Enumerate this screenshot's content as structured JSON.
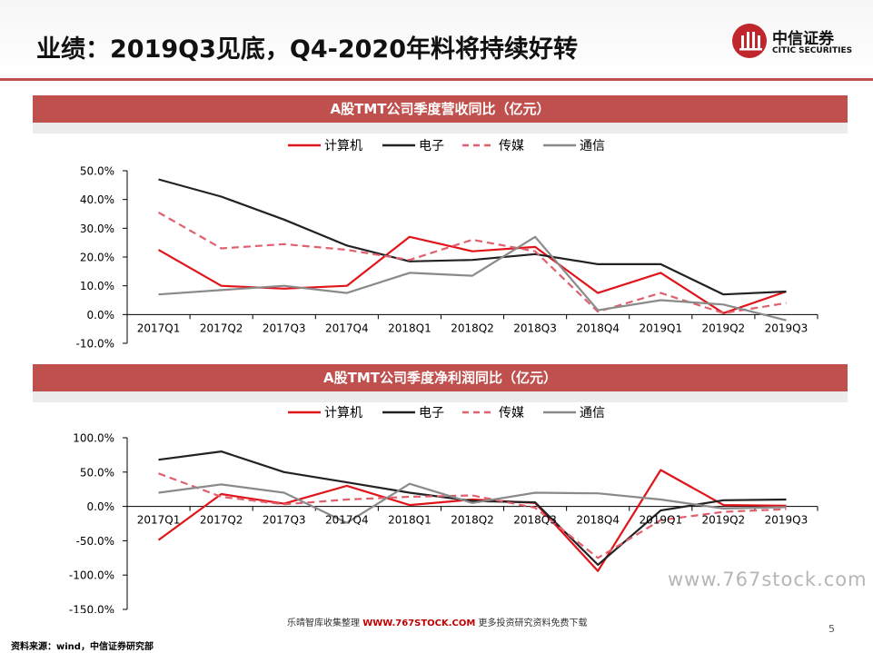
{
  "title": "业绩：2019Q3见底，Q4-2020年料将持续好转",
  "logo": {
    "cn": "中信证券",
    "en": "CITIC SECURITIES",
    "icon": "citic-logo-icon",
    "color": "#c0272d"
  },
  "accent": "#c0504d",
  "footer": {
    "note_prefix": "乐晴智库收集整理 ",
    "brand": "WWW.767STOCK.COM",
    "note_suffix": " 更多投资研究资料免费下载",
    "source": "资料来源：wind，中信证券研究部",
    "page": "5",
    "watermark": "www.767stock.com"
  },
  "chart_data": [
    {
      "type": "line",
      "title": "A股TMT公司季度营收同比（亿元）",
      "categories": [
        "2017Q1",
        "2017Q2",
        "2017Q3",
        "2017Q4",
        "2018Q1",
        "2018Q2",
        "2018Q3",
        "2018Q4",
        "2019Q1",
        "2019Q2",
        "2019Q3"
      ],
      "ylim": [
        -10,
        50
      ],
      "yticks": [
        -10,
        0,
        10,
        20,
        30,
        40,
        50
      ],
      "ytick_labels": [
        "-10.0%",
        "0.0%",
        "10.0%",
        "20.0%",
        "30.0%",
        "40.0%",
        "50.0%"
      ],
      "legend_position": "top-center",
      "grid": false,
      "series": [
        {
          "name": "计算机",
          "color": "#e0151b",
          "dash": "solid",
          "values": [
            22.5,
            10,
            9,
            10,
            27,
            22,
            23.5,
            7.5,
            14.5,
            0.5,
            8
          ]
        },
        {
          "name": "电子",
          "color": "#222222",
          "dash": "solid",
          "values": [
            47,
            41,
            33,
            24,
            18.5,
            19,
            21,
            17.5,
            17.5,
            7,
            8
          ]
        },
        {
          "name": "传媒",
          "color": "#e0606e",
          "dash": "dashed",
          "values": [
            35.5,
            23,
            24.5,
            22.5,
            19,
            26,
            22,
            1,
            7.5,
            0.5,
            4
          ]
        },
        {
          "name": "通信",
          "color": "#8a8a8a",
          "dash": "solid",
          "values": [
            7,
            8.5,
            10,
            7.5,
            14.5,
            13.5,
            27,
            1.5,
            5,
            3.5,
            -2
          ]
        }
      ]
    },
    {
      "type": "line",
      "title": "A股TMT公司季度净利润同比（亿元）",
      "categories": [
        "2017Q1",
        "2017Q2",
        "2017Q3",
        "2017Q4",
        "2018Q1",
        "2018Q2",
        "2018Q3",
        "2018Q4",
        "2019Q1",
        "2019Q2",
        "2019Q3"
      ],
      "ylim": [
        -150,
        100
      ],
      "yticks": [
        -150,
        -100,
        -50,
        0,
        50,
        100
      ],
      "ytick_labels": [
        "-150.0%",
        "-100.0%",
        "-50.0%",
        "0.0%",
        "50.0%",
        "100.0%"
      ],
      "legend_position": "top-center",
      "grid": false,
      "series": [
        {
          "name": "计算机",
          "color": "#e0151b",
          "dash": "solid",
          "values": [
            -49,
            18,
            4,
            30,
            2,
            10,
            5,
            -94,
            53,
            2,
            1
          ]
        },
        {
          "name": "电子",
          "color": "#222222",
          "dash": "solid",
          "values": [
            68,
            80,
            50,
            35,
            20,
            8,
            6,
            -85,
            -6,
            9,
            10
          ]
        },
        {
          "name": "传媒",
          "color": "#e0606e",
          "dash": "dashed",
          "values": [
            48,
            14,
            3,
            10,
            14,
            16,
            -2,
            -75,
            -20,
            -8,
            -4
          ]
        },
        {
          "name": "通信",
          "color": "#8a8a8a",
          "dash": "solid",
          "values": [
            20,
            32,
            20,
            -24,
            33,
            5,
            20,
            19,
            10,
            -3,
            -1
          ]
        }
      ]
    }
  ]
}
